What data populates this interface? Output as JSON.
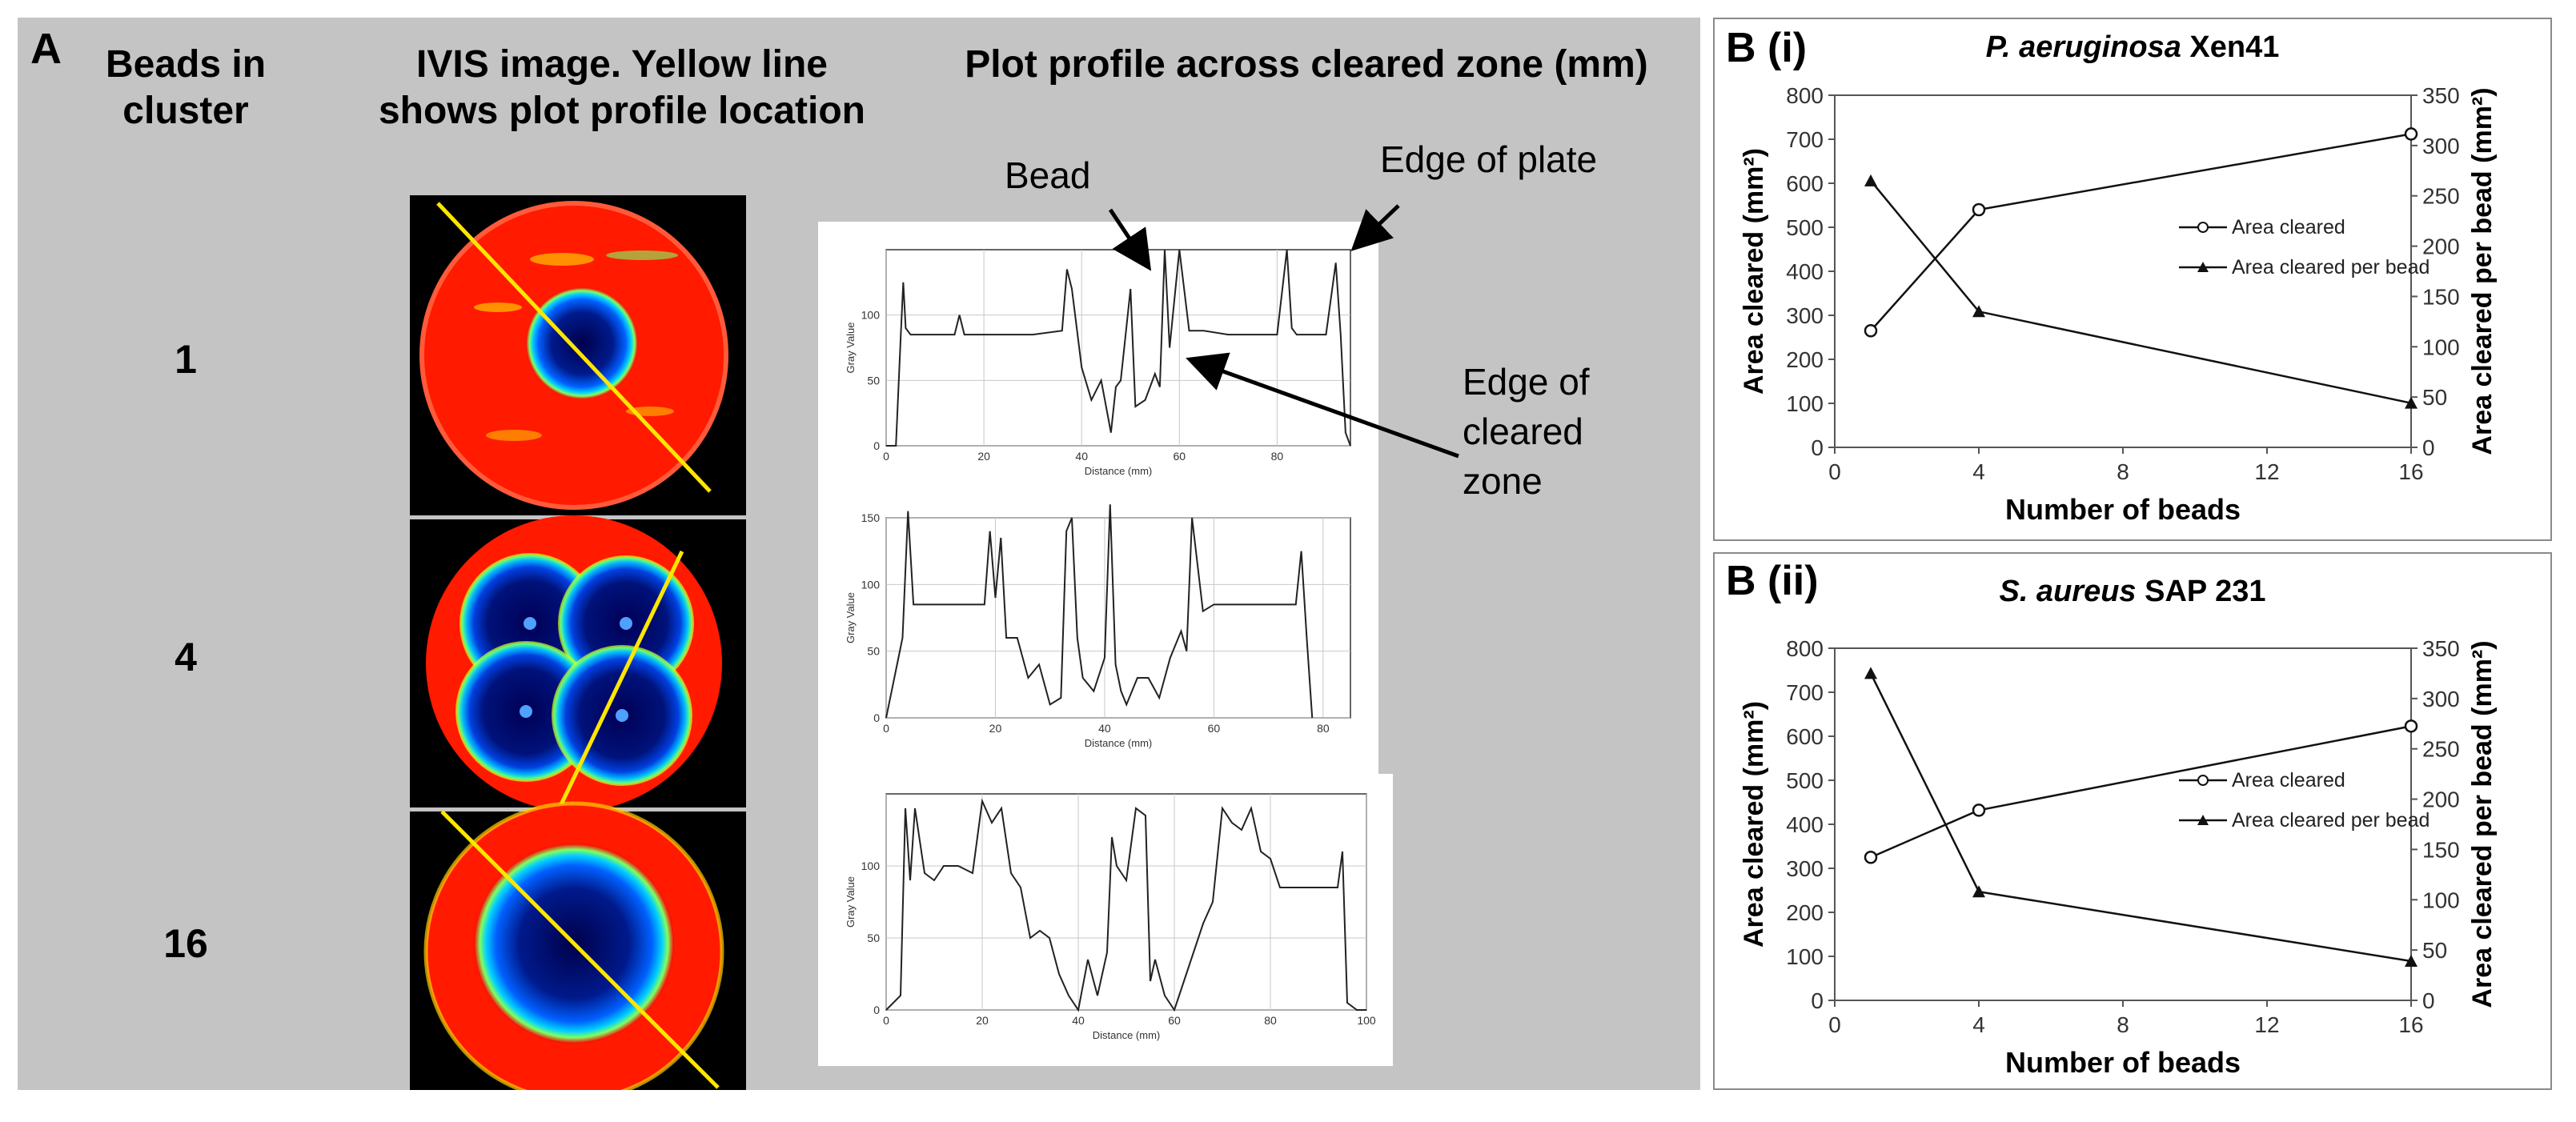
{
  "panel_a": {
    "letter": "A",
    "headers": {
      "beads": "Beads in cluster",
      "ivis": "IVIS image. Yellow line shows plot profile location",
      "profile": "Plot profile across cleared zone (mm)"
    },
    "bead_counts": [
      "1",
      "4",
      "16"
    ],
    "annotations": {
      "bead": "Bead",
      "edge_plate": "Edge of plate",
      "edge_cleared": "Edge of cleared zone"
    },
    "profile_axes": {
      "ylabel": "Gray Value",
      "xlabel": "Distance (mm)"
    }
  },
  "panel_b": {
    "letters": [
      "B (i)",
      "B (ii)"
    ],
    "titles": [
      {
        "italic": "P. aeruginosa",
        "rest": " Xen41"
      },
      {
        "italic": "S. aureus",
        "rest": " SAP 231"
      }
    ],
    "legend": [
      "Area cleared",
      "Area cleared per bead"
    ]
  },
  "chart_data": [
    {
      "type": "line",
      "title": "P. aeruginosa Xen41",
      "xlabel": "Number of beads",
      "ylabel": "Area cleared (mm²)",
      "y2label": "Area cleared per bead (mm²)",
      "x": [
        1,
        4,
        16
      ],
      "xlim": [
        0,
        16
      ],
      "xticks": [
        "0",
        "4",
        "8",
        "12",
        "16"
      ],
      "ylim": [
        0,
        800
      ],
      "yticks": [
        "0",
        "100",
        "200",
        "300",
        "400",
        "500",
        "600",
        "700",
        "800"
      ],
      "y2lim": [
        0,
        350
      ],
      "y2ticks": [
        "0",
        "50",
        "100",
        "150",
        "200",
        "250",
        "300",
        "350"
      ],
      "series": [
        {
          "name": "Area cleared",
          "axis": "left",
          "marker": "open-circle",
          "values": [
            265,
            540,
            712
          ]
        },
        {
          "name": "Area cleared per bead",
          "axis": "right",
          "marker": "filled-triangle",
          "values": [
            265,
            135,
            44
          ]
        }
      ],
      "legend_position": "center-right"
    },
    {
      "type": "line",
      "title": "S. aureus SAP 231",
      "xlabel": "Number of beads",
      "ylabel": "Area cleared (mm²)",
      "y2label": "Area cleared per bead (mm²)",
      "x": [
        1,
        4,
        16
      ],
      "xlim": [
        0,
        16
      ],
      "xticks": [
        "0",
        "4",
        "8",
        "12",
        "16"
      ],
      "ylim": [
        0,
        800
      ],
      "yticks": [
        "0",
        "100",
        "200",
        "300",
        "400",
        "500",
        "600",
        "700",
        "800"
      ],
      "y2lim": [
        0,
        350
      ],
      "y2ticks": [
        "0",
        "50",
        "100",
        "150",
        "200",
        "250",
        "300",
        "350"
      ],
      "series": [
        {
          "name": "Area cleared",
          "axis": "left",
          "marker": "open-circle",
          "values": [
            325,
            432,
            623
          ]
        },
        {
          "name": "Area cleared per bead",
          "axis": "right",
          "marker": "filled-triangle",
          "values": [
            325,
            108,
            39
          ]
        }
      ],
      "legend_position": "center-right"
    },
    {
      "type": "line",
      "title": "",
      "xlabel": "Distance (mm)",
      "ylabel": "Gray Value",
      "xlim": [
        0,
        95
      ],
      "xticks": [
        "0",
        "20",
        "40",
        "60",
        "80"
      ],
      "ylim": [
        0,
        150
      ],
      "yticks": [
        "0",
        "50",
        "100"
      ],
      "x": [
        0,
        2,
        3,
        3.5,
        4,
        5,
        8,
        14,
        15,
        16,
        20,
        30,
        36,
        37,
        38,
        40,
        42,
        44,
        46,
        47,
        48,
        50,
        51,
        53,
        55,
        56,
        57,
        58,
        60,
        62,
        65,
        70,
        75,
        80,
        82,
        83,
        84,
        87,
        90,
        92,
        93,
        94,
        95
      ],
      "values": [
        0,
        0,
        85,
        125,
        90,
        85,
        85,
        85,
        100,
        85,
        85,
        85,
        88,
        135,
        120,
        60,
        35,
        50,
        10,
        45,
        50,
        120,
        30,
        35,
        55,
        45,
        150,
        75,
        150,
        88,
        88,
        85,
        85,
        85,
        150,
        90,
        85,
        85,
        85,
        140,
        85,
        10,
        0
      ]
    },
    {
      "type": "line",
      "title": "",
      "xlabel": "Distance (mm)",
      "ylabel": "Gray Value",
      "xlim": [
        0,
        85
      ],
      "xticks": [
        "0",
        "20",
        "40",
        "60",
        "80"
      ],
      "ylim": [
        0,
        150
      ],
      "yticks": [
        "0",
        "50",
        "100",
        "150"
      ],
      "x": [
        0,
        3,
        4,
        5,
        8,
        15,
        18,
        19,
        20,
        21,
        22,
        24,
        26,
        28,
        30,
        32,
        33,
        34,
        35,
        36,
        38,
        40,
        41,
        42,
        43,
        44,
        46,
        48,
        50,
        52,
        54,
        55,
        56,
        58,
        60,
        65,
        70,
        75,
        76,
        77,
        78
      ],
      "values": [
        0,
        60,
        155,
        85,
        85,
        85,
        85,
        140,
        90,
        135,
        60,
        60,
        30,
        40,
        10,
        15,
        140,
        150,
        60,
        30,
        20,
        45,
        160,
        40,
        20,
        10,
        30,
        30,
        15,
        45,
        65,
        50,
        150,
        80,
        85,
        85,
        85,
        85,
        125,
        60,
        0
      ]
    },
    {
      "type": "line",
      "title": "",
      "xlabel": "Distance (mm)",
      "ylabel": "Gray Value",
      "xlim": [
        0,
        100
      ],
      "xticks": [
        "0",
        "20",
        "40",
        "60",
        "80",
        "100"
      ],
      "ylim": [
        0,
        150
      ],
      "yticks": [
        "0",
        "50",
        "100"
      ],
      "x": [
        0,
        3,
        4,
        5,
        6,
        8,
        10,
        12,
        15,
        18,
        20,
        22,
        24,
        26,
        28,
        30,
        32,
        34,
        36,
        38,
        40,
        42,
        44,
        46,
        47,
        48,
        50,
        52,
        54,
        55,
        56,
        58,
        60,
        62,
        66,
        68,
        70,
        72,
        74,
        76,
        78,
        80,
        82,
        84,
        86,
        88,
        90,
        94,
        95,
        96,
        98,
        100
      ],
      "values": [
        0,
        10,
        140,
        90,
        140,
        95,
        90,
        100,
        100,
        95,
        145,
        130,
        140,
        95,
        85,
        50,
        55,
        50,
        25,
        10,
        0,
        35,
        10,
        40,
        120,
        100,
        90,
        140,
        135,
        20,
        35,
        10,
        0,
        20,
        60,
        75,
        140,
        130,
        125,
        140,
        110,
        105,
        85,
        85,
        85,
        85,
        85,
        85,
        110,
        5,
        0,
        0
      ]
    }
  ]
}
